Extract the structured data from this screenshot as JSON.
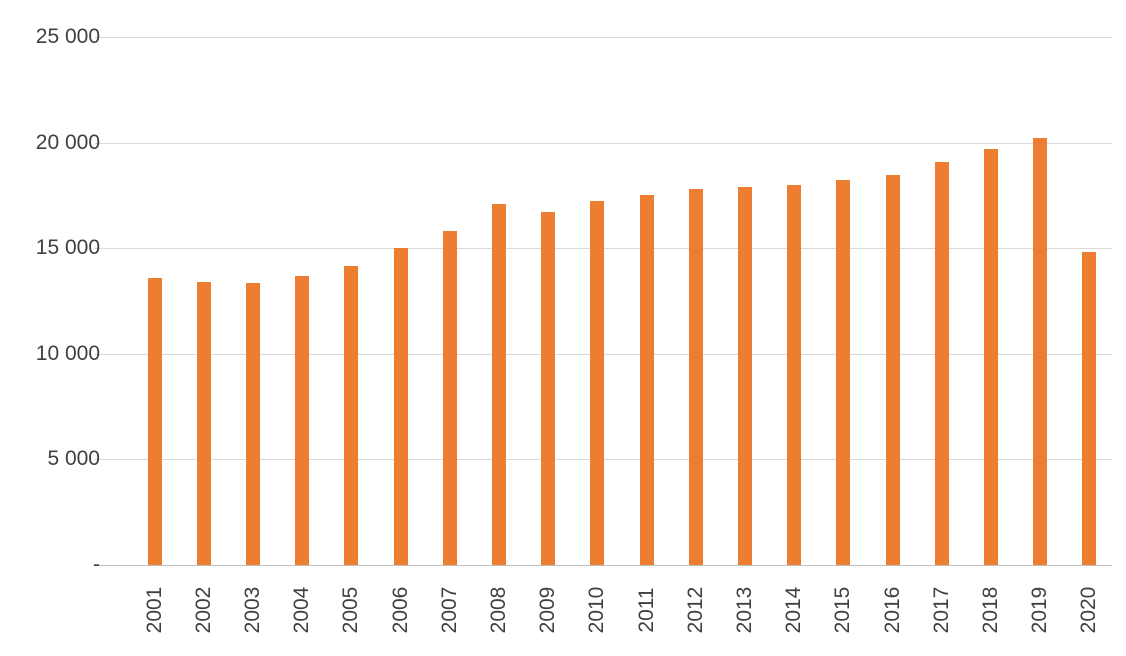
{
  "chart_data": {
    "type": "bar",
    "title": "",
    "xlabel": "",
    "ylabel": "",
    "categories": [
      "2001",
      "2002",
      "2003",
      "2004",
      "2005",
      "2006",
      "2007",
      "2008",
      "2009",
      "2010",
      "2011",
      "2012",
      "2013",
      "2014",
      "2015",
      "2016",
      "2017",
      "2018",
      "2019",
      "2020"
    ],
    "values": [
      13600,
      13400,
      13350,
      13700,
      14150,
      15000,
      15800,
      17100,
      16700,
      17250,
      17500,
      17800,
      17900,
      18000,
      18250,
      18450,
      19100,
      19700,
      20200,
      14800
    ],
    "ylim": [
      0,
      25000
    ],
    "yticks": [
      0,
      5000,
      10000,
      15000,
      20000,
      25000
    ],
    "ytick_labels": [
      "-",
      "5 000",
      "10 000",
      "15 000",
      "20 000",
      "25 000"
    ],
    "grid": "horizontal",
    "legend": "none",
    "bar_color": "#ED7D31",
    "gridline_color": "#D9D9D9",
    "axis_label_color": "#404040"
  }
}
